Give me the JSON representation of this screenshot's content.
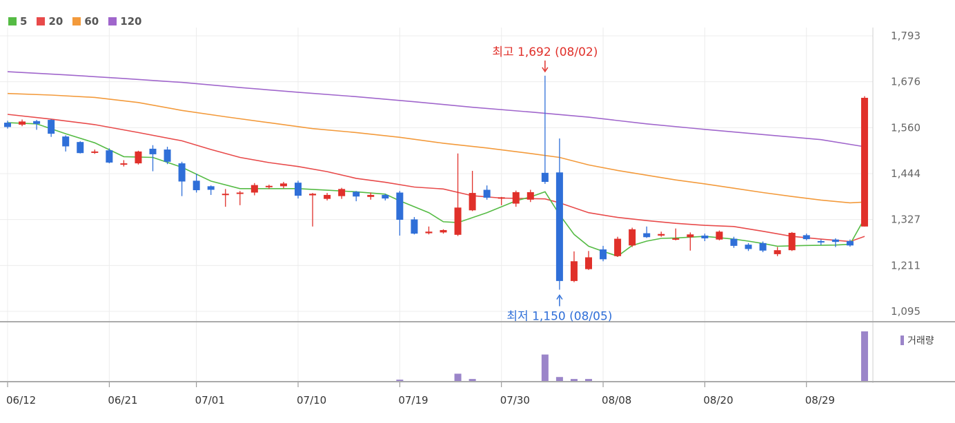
{
  "chart_data": {
    "type": "candlestick",
    "legend": [
      {
        "label": "5",
        "color": "#55bb44"
      },
      {
        "label": "20",
        "color": "#e84a4a"
      },
      {
        "label": "60",
        "color": "#f39a3b"
      },
      {
        "label": "120",
        "color": "#a066cc"
      }
    ],
    "colors": {
      "up": "#e0302a",
      "down": "#2f6fd8",
      "volume": "#9b85c9"
    },
    "y_ticks": [
      "1,793",
      "1,676",
      "1,560",
      "1,444",
      "1,327",
      "1,211",
      "1,095"
    ],
    "ylim": [
      1095,
      1793
    ],
    "x_tick_labels": [
      "06/12",
      "06/21",
      "07/01",
      "07/10",
      "07/19",
      "07/30",
      "08/08",
      "08/20",
      "08/29"
    ],
    "x_tick_index": [
      0,
      7,
      13,
      20,
      27,
      34,
      41,
      48,
      55
    ],
    "volume_label": "거래량",
    "annotations": {
      "high": {
        "text": "최고 1,692 (08/02)",
        "value": 1692,
        "index": 37,
        "color": "#e0302a"
      },
      "low": {
        "text": "최저 1,150 (08/05)",
        "value": 1150,
        "index": 38,
        "color": "#2f6fd8"
      }
    },
    "candles": [
      [
        1573,
        1562,
        1578,
        1558
      ],
      [
        1568,
        1576,
        1581,
        1564
      ],
      [
        1577,
        1570,
        1580,
        1555
      ],
      [
        1580,
        1545,
        1582,
        1537
      ],
      [
        1538,
        1513,
        1541,
        1500
      ],
      [
        1524,
        1496,
        1526,
        1495
      ],
      [
        1500,
        1500,
        1505,
        1494
      ],
      [
        1503,
        1472,
        1508,
        1470
      ],
      [
        1470,
        1470,
        1478,
        1462
      ],
      [
        1470,
        1500,
        1502,
        1467
      ],
      [
        1507,
        1493,
        1516,
        1450
      ],
      [
        1505,
        1474,
        1512,
        1468
      ],
      [
        1470,
        1424,
        1474,
        1387
      ],
      [
        1426,
        1402,
        1444,
        1396
      ],
      [
        1412,
        1403,
        1414,
        1390
      ],
      [
        1390,
        1393,
        1405,
        1360
      ],
      [
        1395,
        1396,
        1400,
        1364
      ],
      [
        1396,
        1415,
        1420,
        1389
      ],
      [
        1411,
        1413,
        1416,
        1405
      ],
      [
        1412,
        1419,
        1423,
        1407
      ],
      [
        1421,
        1388,
        1426,
        1381
      ],
      [
        1389,
        1393,
        1395,
        1310
      ],
      [
        1380,
        1390,
        1395,
        1376
      ],
      [
        1387,
        1405,
        1408,
        1380
      ],
      [
        1398,
        1386,
        1400,
        1374
      ],
      [
        1385,
        1390,
        1396,
        1378
      ],
      [
        1390,
        1381,
        1393,
        1376
      ],
      [
        1396,
        1327,
        1400,
        1287
      ],
      [
        1328,
        1292,
        1334,
        1290
      ],
      [
        1293,
        1297,
        1310,
        1290
      ],
      [
        1295,
        1301,
        1303,
        1292
      ],
      [
        1289,
        1358,
        1495,
        1286
      ],
      [
        1351,
        1395,
        1451,
        1349
      ],
      [
        1403,
        1383,
        1414,
        1378
      ],
      [
        1381,
        1384,
        1385,
        1364
      ],
      [
        1368,
        1397,
        1401,
        1360
      ],
      [
        1378,
        1397,
        1403,
        1372
      ],
      [
        1446,
        1423,
        1692,
        1418
      ],
      [
        1447,
        1172,
        1533,
        1150
      ],
      [
        1172,
        1222,
        1247,
        1169
      ],
      [
        1202,
        1232,
        1248,
        1200
      ],
      [
        1252,
        1227,
        1261,
        1222
      ],
      [
        1235,
        1279,
        1284,
        1233
      ],
      [
        1262,
        1303,
        1307,
        1258
      ],
      [
        1293,
        1283,
        1310,
        1281
      ],
      [
        1287,
        1291,
        1297,
        1284
      ],
      [
        1280,
        1280,
        1305,
        1275
      ],
      [
        1283,
        1290,
        1295,
        1249
      ],
      [
        1287,
        1280,
        1292,
        1273
      ],
      [
        1277,
        1297,
        1300,
        1275
      ],
      [
        1279,
        1261,
        1284,
        1256
      ],
      [
        1264,
        1253,
        1268,
        1248
      ],
      [
        1268,
        1249,
        1272,
        1245
      ],
      [
        1240,
        1250,
        1258,
        1235
      ],
      [
        1250,
        1294,
        1296,
        1248
      ],
      [
        1288,
        1278,
        1292,
        1275
      ],
      [
        1273,
        1270,
        1277,
        1263
      ],
      [
        1277,
        1271,
        1280,
        1258
      ],
      [
        1273,
        1262,
        1277,
        1259
      ],
      [
        1310,
        1636,
        1640,
        1310
      ]
    ],
    "volumes": [
      0,
      0,
      0,
      0,
      0,
      0,
      0,
      0,
      0,
      0,
      0,
      0,
      0,
      0,
      0,
      0,
      0,
      0,
      0,
      0,
      0,
      0,
      0,
      0,
      0,
      0,
      0,
      2,
      0,
      0,
      0,
      11,
      3,
      0,
      0,
      0,
      0,
      40,
      6,
      3,
      3,
      0,
      0,
      0,
      0,
      0,
      0,
      0,
      0,
      0,
      0,
      0,
      0,
      0,
      0,
      0,
      0,
      0,
      0,
      75
    ],
    "ma": {
      "5": [
        [
          0,
          1573
        ],
        [
          2,
          1570
        ],
        [
          4,
          1545
        ],
        [
          6,
          1522
        ],
        [
          8,
          1487
        ],
        [
          10,
          1485
        ],
        [
          12,
          1460
        ],
        [
          14,
          1425
        ],
        [
          16,
          1406
        ],
        [
          18,
          1406
        ],
        [
          20,
          1406
        ],
        [
          22,
          1402
        ],
        [
          24,
          1398
        ],
        [
          26,
          1392
        ],
        [
          27,
          1375
        ],
        [
          29,
          1345
        ],
        [
          30,
          1322
        ],
        [
          31,
          1320
        ],
        [
          33,
          1345
        ],
        [
          35,
          1375
        ],
        [
          36,
          1385
        ],
        [
          37,
          1398
        ],
        [
          38,
          1340
        ],
        [
          39,
          1290
        ],
        [
          40,
          1260
        ],
        [
          41,
          1247
        ],
        [
          42,
          1235
        ],
        [
          43,
          1262
        ],
        [
          44,
          1273
        ],
        [
          45,
          1280
        ],
        [
          46,
          1281
        ],
        [
          48,
          1285
        ],
        [
          50,
          1278
        ],
        [
          51,
          1273
        ],
        [
          52,
          1267
        ],
        [
          53,
          1260
        ],
        [
          55,
          1262
        ],
        [
          57,
          1263
        ],
        [
          58,
          1265
        ],
        [
          59,
          1331
        ]
      ],
      "20": [
        [
          0,
          1594
        ],
        [
          3,
          1582
        ],
        [
          6,
          1568
        ],
        [
          9,
          1548
        ],
        [
          12,
          1527
        ],
        [
          14,
          1505
        ],
        [
          16,
          1485
        ],
        [
          18,
          1472
        ],
        [
          20,
          1462
        ],
        [
          22,
          1449
        ],
        [
          24,
          1432
        ],
        [
          26,
          1422
        ],
        [
          28,
          1410
        ],
        [
          30,
          1405
        ],
        [
          32,
          1388
        ],
        [
          34,
          1382
        ],
        [
          37,
          1380
        ],
        [
          38,
          1370
        ],
        [
          40,
          1345
        ],
        [
          42,
          1333
        ],
        [
          44,
          1325
        ],
        [
          46,
          1318
        ],
        [
          48,
          1313
        ],
        [
          50,
          1310
        ],
        [
          52,
          1298
        ],
        [
          54,
          1285
        ],
        [
          56,
          1278
        ],
        [
          58,
          1272
        ],
        [
          59,
          1285
        ]
      ],
      "60": [
        [
          0,
          1647
        ],
        [
          3,
          1643
        ],
        [
          6,
          1637
        ],
        [
          9,
          1624
        ],
        [
          12,
          1604
        ],
        [
          15,
          1588
        ],
        [
          18,
          1573
        ],
        [
          21,
          1558
        ],
        [
          24,
          1548
        ],
        [
          27,
          1536
        ],
        [
          30,
          1521
        ],
        [
          33,
          1509
        ],
        [
          36,
          1495
        ],
        [
          38,
          1485
        ],
        [
          40,
          1466
        ],
        [
          42,
          1452
        ],
        [
          44,
          1440
        ],
        [
          46,
          1428
        ],
        [
          48,
          1418
        ],
        [
          50,
          1407
        ],
        [
          52,
          1396
        ],
        [
          54,
          1386
        ],
        [
          56,
          1377
        ],
        [
          58,
          1370
        ],
        [
          59,
          1372
        ]
      ],
      "120": [
        [
          0,
          1702
        ],
        [
          4,
          1694
        ],
        [
          8,
          1685
        ],
        [
          12,
          1675
        ],
        [
          16,
          1662
        ],
        [
          20,
          1650
        ],
        [
          24,
          1639
        ],
        [
          28,
          1626
        ],
        [
          32,
          1612
        ],
        [
          36,
          1600
        ],
        [
          40,
          1587
        ],
        [
          44,
          1570
        ],
        [
          48,
          1556
        ],
        [
          52,
          1543
        ],
        [
          56,
          1530
        ],
        [
          59,
          1512
        ]
      ]
    }
  }
}
